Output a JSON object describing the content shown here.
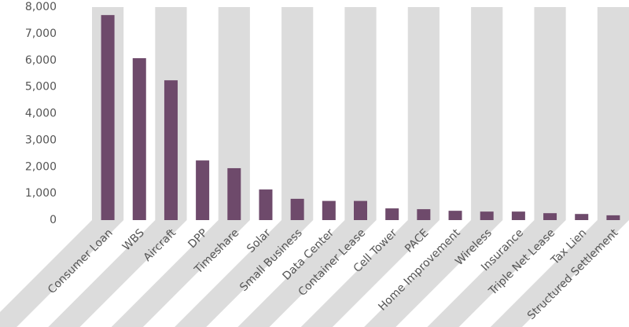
{
  "chart_data": {
    "type": "bar",
    "categories": [
      "Consumer Loan",
      "WBS",
      "Aircraft",
      "DPP",
      "Timeshare",
      "Solar",
      "Small Business",
      "Data Center",
      "Container Lease",
      "Cell Tower",
      "PACE",
      "Home Improvement",
      "Wireless",
      "Insurance",
      "Triple Net Lease",
      "Tax Lien",
      "Structured Settlement"
    ],
    "values": [
      7700,
      6080,
      5250,
      2240,
      1950,
      1150,
      800,
      720,
      720,
      440,
      410,
      350,
      320,
      320,
      260,
      230,
      180
    ],
    "color": "#6e4a6b",
    "ylim": [
      0,
      8000
    ],
    "yticks": [
      0,
      {
        "value": 1000,
        "label": "1,000"
      },
      {
        "value": 2000,
        "label": "2,000"
      },
      {
        "value": 3000,
        "label": "3,000"
      },
      {
        "value": 4000,
        "label": "4,000"
      },
      {
        "value": 5000,
        "label": "5,000"
      },
      {
        "value": 6000,
        "label": "6,000"
      },
      {
        "value": 7000,
        "label": "7,000"
      },
      {
        "value": 8000,
        "label": "8,000"
      }
    ]
  }
}
